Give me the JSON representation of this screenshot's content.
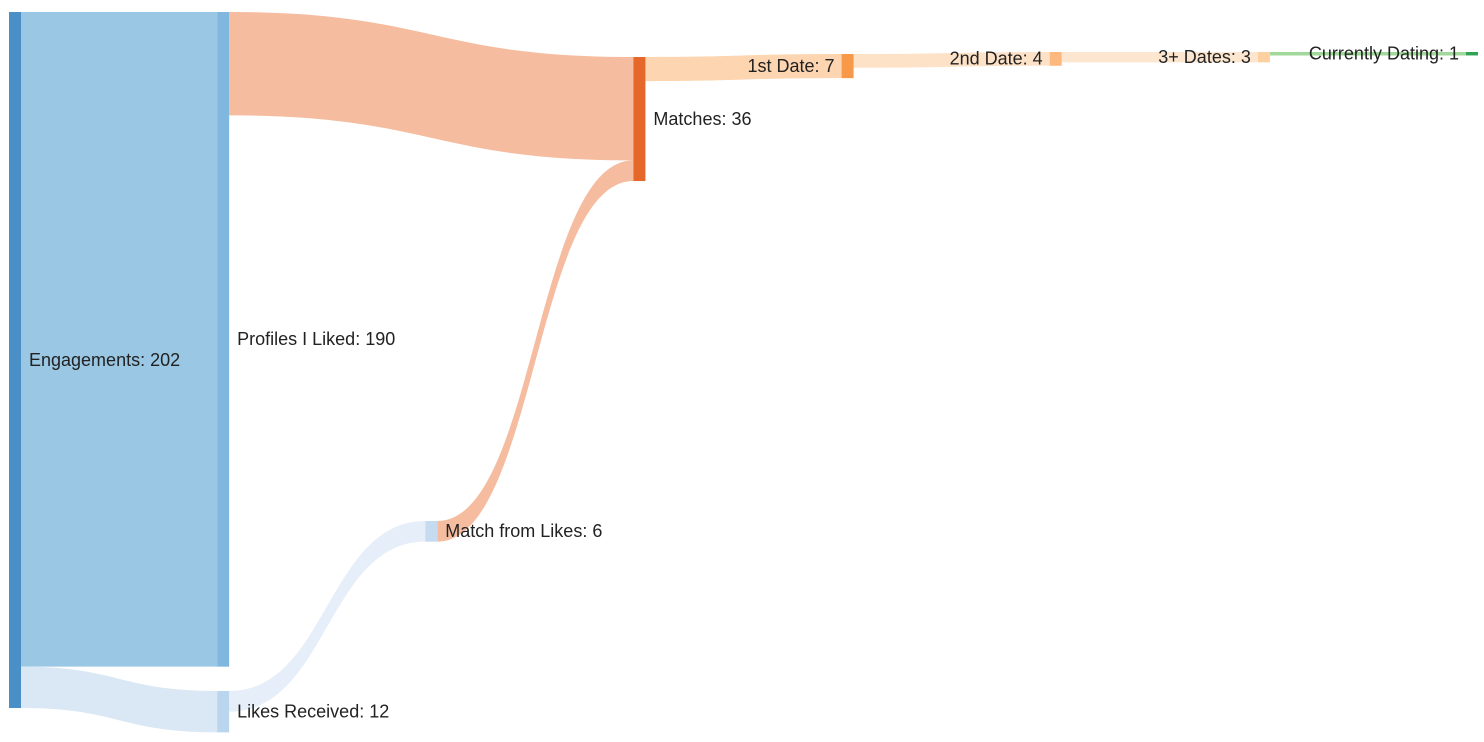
{
  "chart_data": {
    "type": "sankey",
    "nodes": [
      {
        "label": "Engagements: 202",
        "value": 202,
        "color": "#4a8fc6"
      },
      {
        "label": "Profiles I Liked: 190",
        "value": 190,
        "color": "#7fb7df"
      },
      {
        "label": "Likes Received: 12",
        "value": 12,
        "color": "#b9d6ee"
      },
      {
        "label": "Match from Likes: 6",
        "value": 6,
        "color": "#c6dbef"
      },
      {
        "label": "Matches: 36",
        "value": 36,
        "color": "#e6672a"
      },
      {
        "label": "1st Date: 7",
        "value": 7,
        "color": "#f8994a"
      },
      {
        "label": "2nd Date: 4",
        "value": 4,
        "color": "#fdb880"
      },
      {
        "label": "3+ Dates: 3",
        "value": 3,
        "color": "#fdd0a2"
      },
      {
        "label": "Currently Dating: 1",
        "value": 1,
        "color": "#31a354"
      }
    ],
    "links": [
      {
        "source": 0,
        "target": 1,
        "value": 190,
        "color": "#9ac7e3"
      },
      {
        "source": 0,
        "target": 2,
        "value": 12,
        "color": "#d9e8f4"
      },
      {
        "source": 1,
        "target": 4,
        "value": 30,
        "color": "#f5bc9f"
      },
      {
        "source": 2,
        "target": 3,
        "value": 6,
        "color": "#e6eff9"
      },
      {
        "source": 3,
        "target": 4,
        "value": 6,
        "color": "#f5bc9f"
      },
      {
        "source": 4,
        "target": 5,
        "value": 7,
        "color": "#fdd5b1"
      },
      {
        "source": 5,
        "target": 6,
        "value": 4,
        "color": "#fde2c8"
      },
      {
        "source": 6,
        "target": 7,
        "value": 3,
        "color": "#fde6cf"
      },
      {
        "source": 7,
        "target": 8,
        "value": 1,
        "color": "#a1d99b"
      }
    ]
  }
}
